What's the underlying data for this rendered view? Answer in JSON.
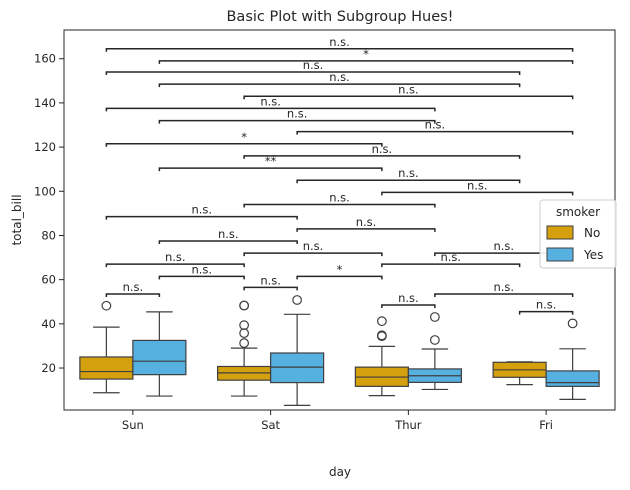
{
  "chart_data": {
    "type": "box",
    "title": "Basic Plot with Subgroup Hues!",
    "xlabel": "day",
    "ylabel": "total_bill",
    "categories": [
      "Sun",
      "Sat",
      "Thur",
      "Fri"
    ],
    "ylim": [
      1,
      173
    ],
    "yticks": [
      20,
      40,
      60,
      80,
      100,
      120,
      140,
      160
    ],
    "grid": false,
    "legend": {
      "title": "smoker",
      "placement": "right"
    },
    "series": [
      {
        "name": "No",
        "color": "#d4a00e",
        "boxes": [
          {
            "category": "Sun",
            "whislo": 8.8,
            "q1": 15.0,
            "median": 18.4,
            "q3": 25.0,
            "whishi": 38.5,
            "fliers": [
              48.2
            ]
          },
          {
            "category": "Sat",
            "whislo": 7.3,
            "q1": 14.5,
            "median": 17.8,
            "q3": 20.7,
            "whishi": 29.0,
            "fliers": [
              31.3,
              35.8,
              39.4,
              48.3,
              48.3
            ]
          },
          {
            "category": "Thur",
            "whislo": 7.5,
            "q1": 11.7,
            "median": 15.9,
            "q3": 20.4,
            "whishi": 29.8,
            "fliers": [
              34.4,
              34.8,
              41.2
            ]
          },
          {
            "category": "Fri",
            "whislo": 12.5,
            "q1": 15.8,
            "median": 19.2,
            "q3": 22.6,
            "whishi": 22.8,
            "fliers": []
          }
        ]
      },
      {
        "name": "Yes",
        "color": "#56b0e0",
        "boxes": [
          {
            "category": "Sun",
            "whislo": 7.3,
            "q1": 17.0,
            "median": 23.1,
            "q3": 32.5,
            "whishi": 45.4,
            "fliers": []
          },
          {
            "category": "Sat",
            "whislo": 3.1,
            "q1": 13.4,
            "median": 20.4,
            "q3": 26.8,
            "whishi": 44.3,
            "fliers": [
              50.8
            ]
          },
          {
            "category": "Thur",
            "whislo": 10.3,
            "q1": 13.5,
            "median": 16.5,
            "q3": 19.6,
            "whishi": 28.6,
            "fliers": [
              32.7,
              43.1
            ]
          },
          {
            "category": "Fri",
            "whislo": 5.8,
            "q1": 11.7,
            "median": 13.4,
            "q3": 18.7,
            "whishi": 28.7,
            "fliers": [
              40.2
            ]
          }
        ]
      }
    ],
    "annotations": [
      {
        "from": [
          "Sun",
          "No"
        ],
        "to": [
          "Sun",
          "Yes"
        ],
        "y": 53.5,
        "label": "n.s."
      },
      {
        "from": [
          "Sat",
          "No"
        ],
        "to": [
          "Sat",
          "Yes"
        ],
        "y": 56.5,
        "label": "n.s."
      },
      {
        "from": [
          "Thur",
          "No"
        ],
        "to": [
          "Thur",
          "Yes"
        ],
        "y": 48.5,
        "label": "n.s."
      },
      {
        "from": [
          "Fri",
          "No"
        ],
        "to": [
          "Fri",
          "Yes"
        ],
        "y": 45.5,
        "label": "n.s."
      },
      {
        "from": [
          "Thur",
          "Yes"
        ],
        "to": [
          "Fri",
          "Yes"
        ],
        "y": 53.5,
        "label": "n.s."
      },
      {
        "from": [
          "Sun",
          "Yes"
        ],
        "to": [
          "Sat",
          "No"
        ],
        "y": 61.5,
        "label": "n.s."
      },
      {
        "from": [
          "Sat",
          "Yes"
        ],
        "to": [
          "Thur",
          "No"
        ],
        "y": 61.5,
        "label": "*"
      },
      {
        "from": [
          "Sun",
          "No"
        ],
        "to": [
          "Sat",
          "No"
        ],
        "y": 67,
        "label": "n.s."
      },
      {
        "from": [
          "Thur",
          "No"
        ],
        "to": [
          "Fri",
          "No"
        ],
        "y": 67,
        "label": "n.s."
      },
      {
        "from": [
          "Sat",
          "No"
        ],
        "to": [
          "Thur",
          "No"
        ],
        "y": 72,
        "label": "n.s."
      },
      {
        "from": [
          "Thur",
          "Yes"
        ],
        "to": [
          "Fri",
          "Yes"
        ],
        "y": 72,
        "label": "n.s."
      },
      {
        "from": [
          "Sun",
          "Yes"
        ],
        "to": [
          "Sat",
          "Yes"
        ],
        "y": 77.5,
        "label": "n.s."
      },
      {
        "from": [
          "Sat",
          "Yes"
        ],
        "to": [
          "Thur",
          "Yes"
        ],
        "y": 83,
        "label": "n.s."
      },
      {
        "from": [
          "Sun",
          "No"
        ],
        "to": [
          "Sat",
          "Yes"
        ],
        "y": 88.5,
        "label": "n.s."
      },
      {
        "from": [
          "Sat",
          "No"
        ],
        "to": [
          "Thur",
          "Yes"
        ],
        "y": 94,
        "label": "n.s."
      },
      {
        "from": [
          "Thur",
          "No"
        ],
        "to": [
          "Fri",
          "Yes"
        ],
        "y": 99.5,
        "label": "n.s."
      },
      {
        "from": [
          "Sat",
          "Yes"
        ],
        "to": [
          "Fri",
          "No"
        ],
        "y": 105,
        "label": "n.s."
      },
      {
        "from": [
          "Sun",
          "Yes"
        ],
        "to": [
          "Thur",
          "No"
        ],
        "y": 110.5,
        "label": "**"
      },
      {
        "from": [
          "Sat",
          "No"
        ],
        "to": [
          "Fri",
          "No"
        ],
        "y": 116,
        "label": "n.s."
      },
      {
        "from": [
          "Sun",
          "No"
        ],
        "to": [
          "Thur",
          "No"
        ],
        "y": 121.5,
        "label": "*"
      },
      {
        "from": [
          "Sat",
          "Yes"
        ],
        "to": [
          "Fri",
          "Yes"
        ],
        "y": 127,
        "label": "n.s."
      },
      {
        "from": [
          "Sun",
          "Yes"
        ],
        "to": [
          "Thur",
          "Yes"
        ],
        "y": 132,
        "label": "n.s."
      },
      {
        "from": [
          "Sun",
          "No"
        ],
        "to": [
          "Thur",
          "Yes"
        ],
        "y": 137.5,
        "label": "n.s."
      },
      {
        "from": [
          "Sat",
          "No"
        ],
        "to": [
          "Fri",
          "Yes"
        ],
        "y": 143,
        "label": "n.s."
      },
      {
        "from": [
          "Sun",
          "Yes"
        ],
        "to": [
          "Fri",
          "No"
        ],
        "y": 148.5,
        "label": "n.s."
      },
      {
        "from": [
          "Sun",
          "No"
        ],
        "to": [
          "Fri",
          "No"
        ],
        "y": 154,
        "label": "n.s."
      },
      {
        "from": [
          "Sun",
          "Yes"
        ],
        "to": [
          "Fri",
          "Yes"
        ],
        "y": 159,
        "label": "*"
      },
      {
        "from": [
          "Sun",
          "No"
        ],
        "to": [
          "Fri",
          "Yes"
        ],
        "y": 164.5,
        "label": "n.s."
      }
    ]
  }
}
